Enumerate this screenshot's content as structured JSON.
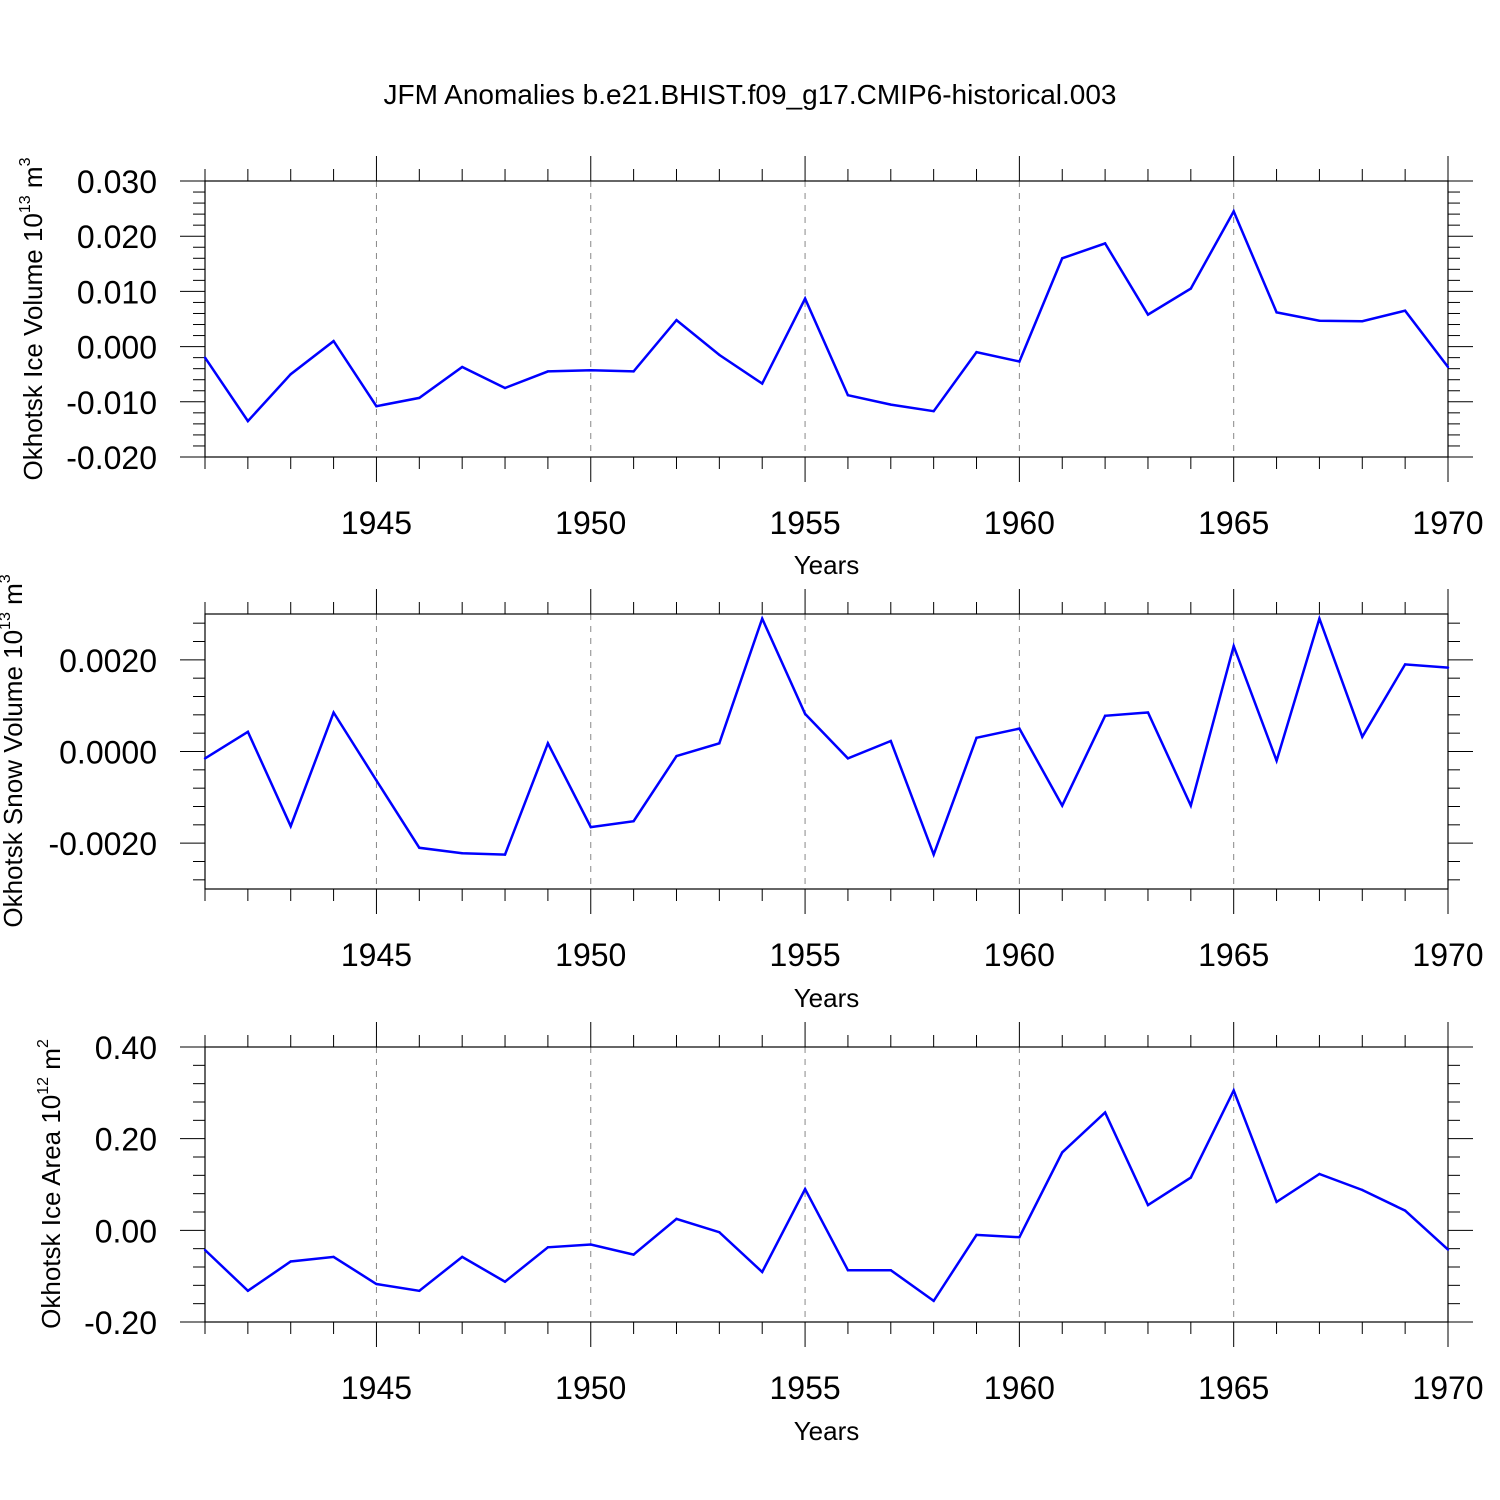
{
  "figure_title": "JFM Anomalies b.e21.BHIST.f09_g17.CMIP6-historical.003",
  "colors": {
    "line": "#0000ff",
    "axis": "#000000",
    "grid": "#888888"
  },
  "chart_data": [
    {
      "type": "line",
      "name": "ice-volume",
      "title": "",
      "xlabel": "Years",
      "ylabel": {
        "text": "Okhotsk Ice Volume 10",
        "sup": "13",
        "unit": " m",
        "unit_sup": "3"
      },
      "xlim": [
        1941,
        1970
      ],
      "ylim": [
        -0.02,
        0.03
      ],
      "xticks": [
        1945,
        1950,
        1955,
        1960,
        1965,
        1970
      ],
      "xtick_labels": [
        "1945",
        "1950",
        "1955",
        "1960",
        "1965",
        "1970"
      ],
      "yticks": [
        -0.02,
        -0.01,
        0.0,
        0.01,
        0.02,
        0.03
      ],
      "ytick_labels": [
        "-0.020",
        "-0.010",
        "0.000",
        "0.010",
        "0.020",
        "0.030"
      ],
      "grid": "vertical dashed at labeled years",
      "x": [
        1941,
        1942,
        1943,
        1944,
        1945,
        1946,
        1947,
        1948,
        1949,
        1950,
        1951,
        1952,
        1953,
        1954,
        1955,
        1956,
        1957,
        1958,
        1959,
        1960,
        1961,
        1962,
        1963,
        1964,
        1965,
        1966,
        1967,
        1968,
        1969,
        1970
      ],
      "values": [
        -0.002,
        -0.0135,
        -0.005,
        0.001,
        -0.0108,
        -0.0093,
        -0.0037,
        -0.0075,
        -0.0045,
        -0.0043,
        -0.0045,
        0.0048,
        -0.0015,
        -0.0067,
        0.0087,
        -0.0088,
        -0.0105,
        -0.0117,
        -0.001,
        -0.0027,
        0.016,
        0.0187,
        0.0058,
        0.0105,
        0.0245,
        0.0062,
        0.0047,
        0.0046,
        0.0065,
        -0.0037
      ]
    },
    {
      "type": "line",
      "name": "snow-volume",
      "title": "",
      "xlabel": "Years",
      "ylabel": {
        "text": "Okhotsk Snow Volume 10",
        "sup": "13",
        "unit": " m",
        "unit_sup": "3"
      },
      "xlim": [
        1941,
        1970
      ],
      "ylim": [
        -0.003,
        0.003
      ],
      "xticks": [
        1945,
        1950,
        1955,
        1960,
        1965,
        1970
      ],
      "xtick_labels": [
        "1945",
        "1950",
        "1955",
        "1960",
        "1965",
        "1970"
      ],
      "yticks": [
        -0.002,
        0.0,
        0.002
      ],
      "ytick_labels": [
        "-0.0020",
        "0.0000",
        "0.0020"
      ],
      "grid": "vertical dashed at labeled years",
      "x": [
        1941,
        1942,
        1943,
        1944,
        1945,
        1946,
        1947,
        1948,
        1949,
        1950,
        1951,
        1952,
        1953,
        1954,
        1955,
        1956,
        1957,
        1958,
        1959,
        1960,
        1961,
        1962,
        1963,
        1964,
        1965,
        1966,
        1967,
        1968,
        1969,
        1970
      ],
      "values": [
        -0.00015,
        0.00043,
        -0.00163,
        0.00085,
        -0.00063,
        -0.0021,
        -0.00222,
        -0.00225,
        0.00018,
        -0.00165,
        -0.00152,
        -0.0001,
        0.00018,
        0.0029,
        0.00082,
        -0.00015,
        0.00023,
        -0.00225,
        0.0003,
        0.0005,
        -0.00118,
        0.00078,
        0.00085,
        -0.00118,
        0.0023,
        -0.0002,
        0.0029,
        0.00032,
        0.0019,
        0.00183
      ]
    },
    {
      "type": "line",
      "name": "ice-area",
      "title": "",
      "xlabel": "Years",
      "ylabel": {
        "text": "Okhotsk Ice Area 10",
        "sup": "12",
        "unit": " m",
        "unit_sup": "2"
      },
      "xlim": [
        1941,
        1970
      ],
      "ylim": [
        -0.2,
        0.4
      ],
      "xticks": [
        1945,
        1950,
        1955,
        1960,
        1965,
        1970
      ],
      "xtick_labels": [
        "1945",
        "1950",
        "1955",
        "1960",
        "1965",
        "1970"
      ],
      "yticks": [
        -0.2,
        0.0,
        0.2,
        0.4
      ],
      "ytick_labels": [
        "-0.20",
        "0.00",
        "0.20",
        "0.40"
      ],
      "grid": "vertical dashed at labeled years",
      "x": [
        1941,
        1942,
        1943,
        1944,
        1945,
        1946,
        1947,
        1948,
        1949,
        1950,
        1951,
        1952,
        1953,
        1954,
        1955,
        1956,
        1957,
        1958,
        1959,
        1960,
        1961,
        1962,
        1963,
        1964,
        1965,
        1966,
        1967,
        1968,
        1969,
        1970
      ],
      "values": [
        -0.043,
        -0.132,
        -0.068,
        -0.058,
        -0.117,
        -0.132,
        -0.058,
        -0.112,
        -0.037,
        -0.031,
        -0.053,
        0.025,
        -0.004,
        -0.091,
        0.09,
        -0.087,
        -0.087,
        -0.154,
        -0.01,
        -0.015,
        0.17,
        0.257,
        0.055,
        0.115,
        0.305,
        0.062,
        0.123,
        0.088,
        0.043,
        -0.042
      ]
    }
  ]
}
